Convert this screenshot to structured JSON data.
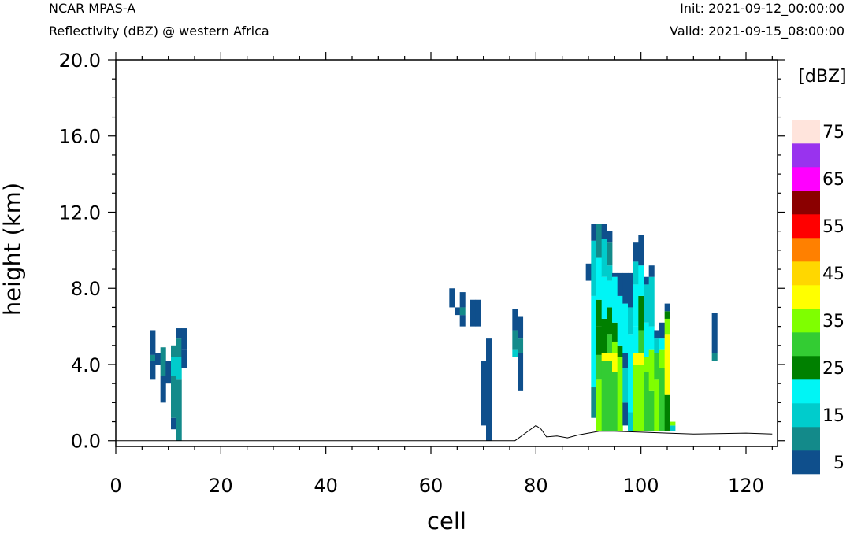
{
  "header": {
    "model": "NCAR MPAS-A",
    "subtitle": "Reflectivity (dBZ) @ western Africa",
    "init": "Init: 2021-09-12_00:00:00",
    "valid": "Valid: 2021-09-15_08:00:00"
  },
  "colorbar": {
    "unit": "[dBZ]",
    "colors": [
      "#0f4f8c",
      "#138a8a",
      "#00cccc",
      "#00f5f5",
      "#008000",
      "#33cc33",
      "#7fff00",
      "#ffff00",
      "#ffd700",
      "#ff8000",
      "#ff0000",
      "#8b0000",
      "#ff00ff",
      "#9933ee",
      "#ffe4dc"
    ],
    "labels": [
      "5",
      "15",
      "25",
      "35",
      "45",
      "55",
      "65",
      "75"
    ]
  },
  "chart_data": {
    "type": "heatmap",
    "xlabel": "cell",
    "ylabel": "height (km)",
    "xlim": [
      0,
      126
    ],
    "ylim": [
      -0.3,
      20.0
    ],
    "x_ticks": [
      "0",
      "20",
      "40",
      "60",
      "80",
      "100",
      "120"
    ],
    "y_ticks": [
      "0.0",
      "4.0",
      "8.0",
      "12.0",
      "16.0",
      "20.0"
    ],
    "levels_dbz": [
      0,
      10,
      15,
      20,
      25,
      30,
      35,
      40,
      45,
      50,
      55,
      60,
      65,
      70,
      75
    ],
    "terrain_km": [
      [
        0,
        0
      ],
      [
        76,
        0
      ],
      [
        78,
        0.4
      ],
      [
        80,
        0.8
      ],
      [
        81,
        0.6
      ],
      [
        82,
        0.2
      ],
      [
        84,
        0.25
      ],
      [
        86,
        0.15
      ],
      [
        88,
        0.3
      ],
      [
        90,
        0.4
      ],
      [
        92,
        0.5
      ],
      [
        95,
        0.5
      ],
      [
        100,
        0.45
      ],
      [
        105,
        0.4
      ],
      [
        110,
        0.35
      ],
      [
        120,
        0.4
      ],
      [
        125,
        0.35
      ]
    ],
    "columns": [
      {
        "x": 7,
        "segments": [
          [
            3.2,
            4.2,
            0
          ],
          [
            4.2,
            4.5,
            1
          ],
          [
            4.5,
            5.8,
            0
          ]
        ]
      },
      {
        "x": 8,
        "segments": [
          [
            4.0,
            4.6,
            0
          ]
        ]
      },
      {
        "x": 9,
        "segments": [
          [
            2.0,
            3.4,
            0
          ],
          [
            3.4,
            4.9,
            1
          ]
        ]
      },
      {
        "x": 10,
        "segments": [
          [
            3.0,
            4.2,
            0
          ]
        ]
      },
      {
        "x": 11,
        "segments": [
          [
            0.6,
            1.2,
            0
          ],
          [
            1.2,
            3.4,
            1
          ],
          [
            3.4,
            4.4,
            2
          ],
          [
            4.4,
            5.0,
            1
          ]
        ]
      },
      {
        "x": 12,
        "segments": [
          [
            0.0,
            3.2,
            1
          ],
          [
            3.2,
            4.4,
            2
          ],
          [
            4.4,
            5.4,
            1
          ],
          [
            5.4,
            5.9,
            0
          ]
        ]
      },
      {
        "x": 13,
        "segments": [
          [
            3.8,
            4.8,
            0
          ],
          [
            4.8,
            5.9,
            0
          ]
        ]
      },
      {
        "x": 64,
        "segments": [
          [
            7.0,
            8.0,
            0
          ]
        ]
      },
      {
        "x": 65,
        "segments": [
          [
            6.6,
            7.0,
            0
          ]
        ]
      },
      {
        "x": 66,
        "segments": [
          [
            6.0,
            6.6,
            0
          ],
          [
            6.6,
            7.0,
            1
          ],
          [
            7.0,
            7.8,
            0
          ]
        ]
      },
      {
        "x": 68,
        "segments": [
          [
            6.0,
            7.4,
            0
          ]
        ]
      },
      {
        "x": 69,
        "segments": [
          [
            6.0,
            7.4,
            0
          ]
        ]
      },
      {
        "x": 70,
        "segments": [
          [
            0.8,
            4.2,
            0
          ]
        ]
      },
      {
        "x": 71,
        "segments": [
          [
            0.0,
            5.4,
            0
          ]
        ]
      },
      {
        "x": 76,
        "segments": [
          [
            4.4,
            4.8,
            2
          ],
          [
            4.8,
            5.8,
            1
          ],
          [
            5.8,
            6.9,
            0
          ]
        ]
      },
      {
        "x": 77,
        "segments": [
          [
            2.6,
            4.6,
            0
          ],
          [
            4.6,
            5.4,
            1
          ],
          [
            5.4,
            6.5,
            0
          ]
        ]
      },
      {
        "x": 90,
        "segments": [
          [
            8.4,
            9.3,
            0
          ]
        ]
      },
      {
        "x": 91,
        "segments": [
          [
            1.2,
            2.8,
            1
          ],
          [
            2.8,
            7.6,
            3
          ],
          [
            7.6,
            10.5,
            2
          ],
          [
            10.5,
            11.4,
            0
          ]
        ]
      },
      {
        "x": 92,
        "segments": [
          [
            0.5,
            3.2,
            6
          ],
          [
            3.2,
            4.5,
            5
          ],
          [
            4.5,
            6.0,
            4
          ],
          [
            6.0,
            7.4,
            4
          ],
          [
            7.4,
            9.6,
            3
          ],
          [
            9.6,
            11.4,
            1
          ]
        ]
      },
      {
        "x": 93,
        "segments": [
          [
            0.5,
            4.2,
            5
          ],
          [
            4.2,
            4.6,
            7
          ],
          [
            4.6,
            6.4,
            4
          ],
          [
            6.4,
            8.6,
            3
          ],
          [
            8.6,
            10.6,
            2
          ],
          [
            10.6,
            11.4,
            0
          ]
        ]
      },
      {
        "x": 94,
        "segments": [
          [
            0.5,
            4.2,
            5
          ],
          [
            4.2,
            4.6,
            7
          ],
          [
            4.6,
            5.6,
            5
          ],
          [
            5.6,
            7.0,
            4
          ],
          [
            7.0,
            8.4,
            3
          ],
          [
            8.4,
            9.2,
            2
          ],
          [
            9.2,
            10.4,
            1
          ],
          [
            10.4,
            11.0,
            0
          ]
        ]
      },
      {
        "x": 95,
        "segments": [
          [
            0.5,
            3.6,
            5
          ],
          [
            3.6,
            4.6,
            7
          ],
          [
            4.6,
            5.2,
            6
          ],
          [
            5.2,
            6.2,
            4
          ],
          [
            6.2,
            8.6,
            3
          ],
          [
            8.6,
            8.8,
            0
          ]
        ]
      },
      {
        "x": 96,
        "segments": [
          [
            0.5,
            4.4,
            6
          ],
          [
            4.4,
            5.0,
            4
          ],
          [
            5.0,
            7.6,
            3
          ],
          [
            7.6,
            8.8,
            0
          ]
        ]
      },
      {
        "x": 97,
        "segments": [
          [
            0.8,
            2.0,
            0
          ],
          [
            2.0,
            3.8,
            2
          ],
          [
            3.8,
            4.6,
            0
          ],
          [
            4.6,
            7.2,
            3
          ],
          [
            7.2,
            8.8,
            0
          ]
        ]
      },
      {
        "x": 98,
        "segments": [
          [
            0.5,
            1.5,
            2
          ],
          [
            1.5,
            4.4,
            3
          ],
          [
            4.4,
            5.6,
            3
          ],
          [
            5.6,
            7.0,
            2
          ],
          [
            7.0,
            8.8,
            0
          ]
        ]
      },
      {
        "x": 99,
        "segments": [
          [
            0.5,
            4.0,
            6
          ],
          [
            4.0,
            4.6,
            7
          ],
          [
            4.6,
            6.0,
            3
          ],
          [
            6.0,
            8.2,
            3
          ],
          [
            8.2,
            9.4,
            2
          ],
          [
            9.4,
            10.4,
            0
          ]
        ]
      },
      {
        "x": 100,
        "segments": [
          [
            0.5,
            4.0,
            6
          ],
          [
            4.0,
            4.6,
            7
          ],
          [
            4.6,
            5.8,
            5
          ],
          [
            5.8,
            7.6,
            4
          ],
          [
            7.6,
            9.2,
            3
          ],
          [
            9.2,
            10.8,
            0
          ]
        ]
      },
      {
        "x": 101,
        "segments": [
          [
            0.5,
            3.6,
            5
          ],
          [
            3.6,
            4.4,
            6
          ],
          [
            4.4,
            6.2,
            3
          ],
          [
            6.2,
            8.2,
            2
          ],
          [
            8.2,
            8.6,
            0
          ]
        ]
      },
      {
        "x": 102,
        "segments": [
          [
            0.5,
            2.6,
            5
          ],
          [
            2.6,
            4.8,
            6
          ],
          [
            4.8,
            6.0,
            3
          ],
          [
            6.0,
            8.6,
            2
          ],
          [
            8.6,
            9.2,
            0
          ]
        ]
      },
      {
        "x": 103,
        "segments": [
          [
            0.5,
            3.2,
            6
          ],
          [
            3.2,
            4.6,
            5
          ],
          [
            4.6,
            5.4,
            2
          ],
          [
            5.4,
            5.8,
            0
          ]
        ]
      },
      {
        "x": 104,
        "segments": [
          [
            0.5,
            3.8,
            5
          ],
          [
            3.8,
            4.8,
            6
          ],
          [
            4.8,
            5.4,
            3
          ],
          [
            5.4,
            6.2,
            0
          ]
        ]
      },
      {
        "x": 105,
        "segments": [
          [
            0.5,
            2.4,
            4
          ],
          [
            2.4,
            4.6,
            7
          ],
          [
            4.6,
            5.6,
            7
          ],
          [
            5.6,
            6.4,
            6
          ],
          [
            6.4,
            6.8,
            4
          ],
          [
            6.8,
            7.2,
            0
          ]
        ]
      },
      {
        "x": 106,
        "segments": [
          [
            0.5,
            0.8,
            2
          ],
          [
            0.8,
            1.0,
            6
          ]
        ]
      },
      {
        "x": 114,
        "segments": [
          [
            4.2,
            4.6,
            1
          ],
          [
            4.6,
            6.7,
            0
          ]
        ]
      }
    ]
  }
}
